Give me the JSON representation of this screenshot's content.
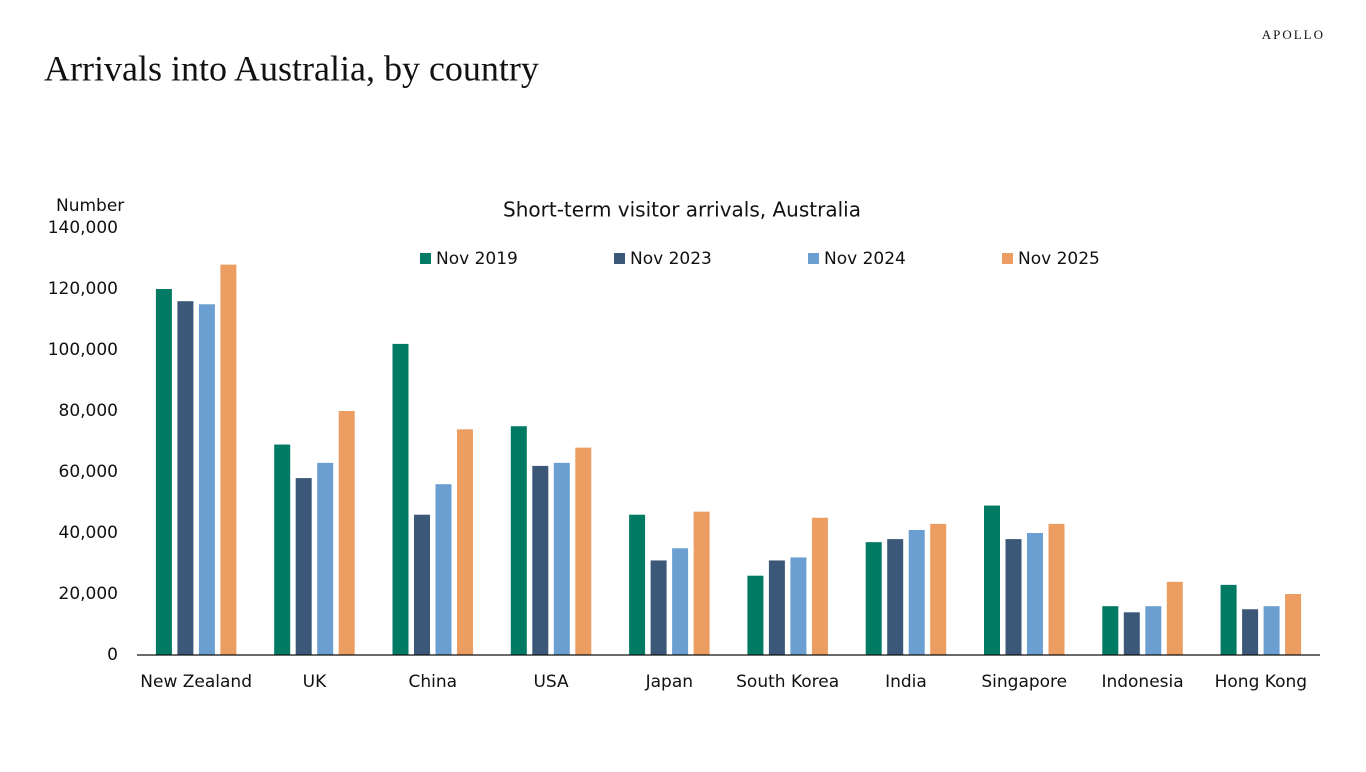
{
  "brand": "APOLLO",
  "title": "Arrivals into Australia, by country",
  "chart_data": {
    "type": "bar",
    "title": "Short-term visitor arrivals, Australia",
    "y_label": "Number",
    "categories": [
      "New Zealand",
      "UK",
      "China",
      "USA",
      "Japan",
      "South Korea",
      "India",
      "Singapore",
      "Indonesia",
      "Hong Kong"
    ],
    "series": [
      {
        "name": "Nov 2019",
        "color": "#007a63",
        "values": [
          120000,
          69000,
          102000,
          75000,
          46000,
          26000,
          37000,
          49000,
          16000,
          23000
        ]
      },
      {
        "name": "Nov 2023",
        "color": "#3b5878",
        "values": [
          116000,
          58000,
          46000,
          62000,
          31000,
          31000,
          38000,
          38000,
          14000,
          15000
        ]
      },
      {
        "name": "Nov 2024",
        "color": "#6b9fd1",
        "values": [
          115000,
          63000,
          56000,
          63000,
          35000,
          32000,
          41000,
          40000,
          16000,
          16000
        ]
      },
      {
        "name": "Nov 2025",
        "color": "#ec9d62",
        "values": [
          128000,
          80000,
          74000,
          68000,
          47000,
          45000,
          43000,
          43000,
          24000,
          20000
        ]
      }
    ],
    "ylim": [
      0,
      140000
    ],
    "yticks": [
      0,
      {
        "value": 20000,
        "label": "20,000"
      },
      {
        "value": 40000,
        "label": "40,000"
      },
      {
        "value": 60000,
        "label": "60,000"
      },
      {
        "value": 80000,
        "label": "80,000"
      },
      {
        "value": 100000,
        "label": "100,000"
      },
      {
        "value": 120000,
        "label": "120,000"
      },
      {
        "value": 140000,
        "label": "140,000"
      }
    ],
    "grid": false
  }
}
